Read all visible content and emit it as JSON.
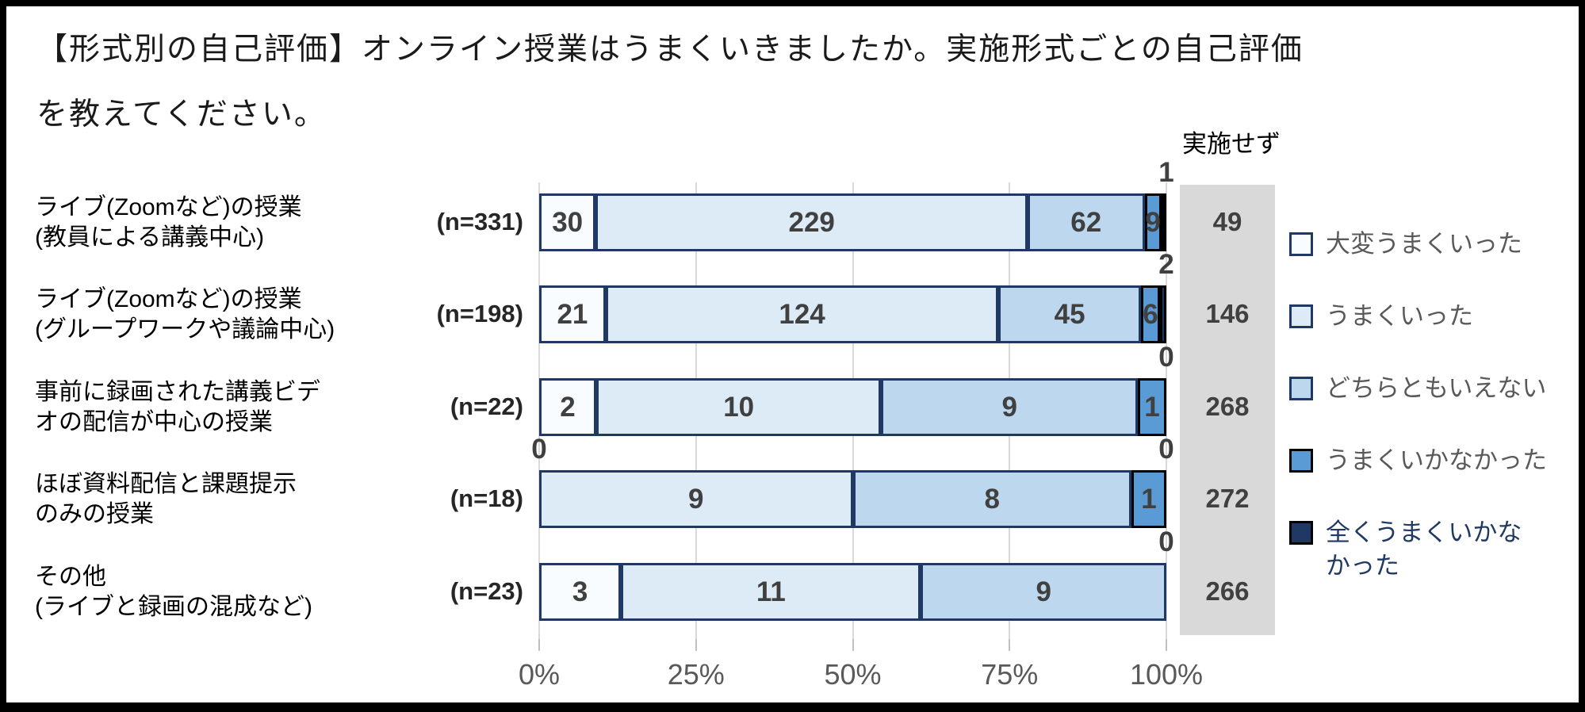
{
  "title": {
    "line1": "【形式別の自己評価】オンライン授業はうまくいきましたか。実施形式ごとの自己評価",
    "line2": "を教えてください。"
  },
  "not_implemented_header": "実施せず",
  "x_axis": {
    "ticks": [
      "0%",
      "25%",
      "50%",
      "75%",
      "100%"
    ]
  },
  "legend": [
    {
      "label": "大変うまくいった",
      "fill": "#F9FCFE",
      "border": "#1F3864",
      "text_color": "#595959"
    },
    {
      "label": "うまくいった",
      "fill": "#DDEBF7",
      "border": "#1F3864",
      "text_color": "#595959"
    },
    {
      "label": "どちらともいえない",
      "fill": "#BDD7EE",
      "border": "#1F3864",
      "text_color": "#595959"
    },
    {
      "label": "うまくいかなかった",
      "fill": "#5B9BD5",
      "border": "#000000",
      "text_color": "#595959"
    },
    {
      "label": "全くうまくいかな\nかった",
      "fill": "#1F3864",
      "border": "#000000",
      "text_color": "#1F3864"
    }
  ],
  "rows": [
    {
      "label": "ライブ(Zoomなど)の授業\n(教員による講義中心)",
      "n_label": "(n=331)",
      "n": 331,
      "values": [
        30,
        229,
        62,
        9,
        1
      ],
      "not_implemented": 49,
      "outside_left": null,
      "outside_right": "1"
    },
    {
      "label": "ライブ(Zoomなど)の授業\n(グループワークや議論中心)",
      "n_label": "(n=198)",
      "n": 198,
      "values": [
        21,
        124,
        45,
        6,
        2
      ],
      "not_implemented": 146,
      "outside_left": null,
      "outside_right": "2"
    },
    {
      "label": "事前に録画された講義ビデ\nオの配信が中心の授業",
      "n_label": "(n=22)",
      "n": 22,
      "values": [
        2,
        10,
        9,
        1,
        0
      ],
      "not_implemented": 268,
      "outside_left": null,
      "outside_right": "0"
    },
    {
      "label": "ほぼ資料配信と課題提示\nのみの授業",
      "n_label": "(n=18)",
      "n": 18,
      "values": [
        0,
        9,
        8,
        1,
        0
      ],
      "not_implemented": 272,
      "outside_left": "0",
      "outside_right": "0"
    },
    {
      "label": "その他\n(ライブと録画の混成など)",
      "n_label": "(n=23)",
      "n": 23,
      "values": [
        3,
        11,
        9,
        0,
        0
      ],
      "not_implemented": 266,
      "outside_left": null,
      "outside_right": "0"
    }
  ],
  "colors": {
    "gray_column": "#D9D9D9",
    "gridline": "#D9D9D9",
    "value_label": "#404040",
    "axis_label": "#595959"
  },
  "chart_data": {
    "type": "bar",
    "orientation": "horizontal",
    "stacked": true,
    "title": "【形式別の自己評価】オンライン授業はうまくいきましたか。実施形式ごとの自己評価を教えてください。",
    "categories": [
      "ライブ(Zoomなど)の授業(教員による講義中心)",
      "ライブ(Zoomなど)の授業(グループワークや議論中心)",
      "事前に録画された講義ビデオの配信が中心の授業",
      "ほぼ資料配信と課題提示のみの授業",
      "その他(ライブと録画の混成など)"
    ],
    "sample_sizes": [
      331,
      198,
      22,
      18,
      23
    ],
    "series": [
      {
        "name": "大変うまくいった",
        "values": [
          30,
          21,
          2,
          0,
          3
        ]
      },
      {
        "name": "うまくいった",
        "values": [
          229,
          124,
          10,
          9,
          11
        ]
      },
      {
        "name": "どちらともいえない",
        "values": [
          62,
          45,
          9,
          8,
          9
        ]
      },
      {
        "name": "うまくいかなかった",
        "values": [
          9,
          6,
          1,
          1,
          0
        ]
      },
      {
        "name": "全くうまくいかなかった",
        "values": [
          1,
          2,
          0,
          0,
          0
        ]
      }
    ],
    "side_column": {
      "name": "実施せず",
      "values": [
        49,
        146,
        268,
        272,
        266
      ]
    },
    "x_ticks": [
      "0%",
      "25%",
      "50%",
      "75%",
      "100%"
    ],
    "xlim": [
      0,
      100
    ],
    "x_unit": "percent of n (segments drawn as value/n)",
    "grid": true,
    "legend_position": "right"
  }
}
